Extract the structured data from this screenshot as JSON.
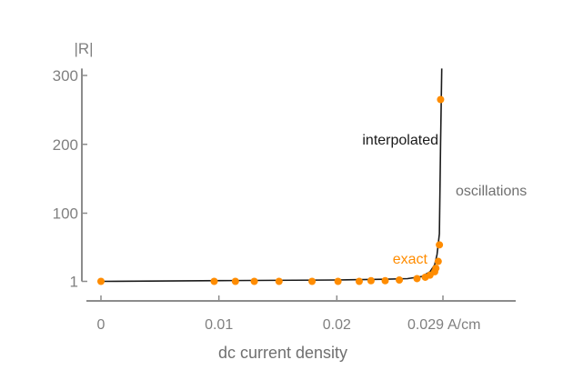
{
  "chart_data": {
    "type": "line",
    "title": "",
    "xlabel": "dc current density",
    "x_unit": "A/cm",
    "ylabel": "|R|",
    "xlim": [
      0,
      0.0352
    ],
    "ylim": [
      1,
      310
    ],
    "grid": false,
    "x_ticks": [
      {
        "value": 0,
        "label": "0"
      },
      {
        "value": 0.01,
        "label": "0.01"
      },
      {
        "value": 0.02,
        "label": "0.02"
      },
      {
        "value": 0.029,
        "label": "0.029"
      }
    ],
    "y_ticks": [
      {
        "value": 1,
        "label": "1"
      },
      {
        "value": 100,
        "label": "100"
      },
      {
        "value": 200,
        "label": "200"
      },
      {
        "value": 300,
        "label": "300"
      }
    ],
    "series": [
      {
        "name": "interpolated",
        "color": "#1a1a1a",
        "x": [
          0,
          0.01,
          0.02,
          0.024,
          0.026,
          0.0272,
          0.0279,
          0.0283,
          0.0285,
          0.0287,
          0.0288,
          0.0289
        ],
        "y": [
          1,
          2,
          3,
          4,
          5,
          8,
          15,
          25,
          40,
          70,
          200,
          310
        ]
      },
      {
        "name": "exact",
        "color": "#ff8c00",
        "x": [
          0,
          0.0096,
          0.0114,
          0.013,
          0.0151,
          0.0179,
          0.0201,
          0.0219,
          0.0229,
          0.0241,
          0.0253,
          0.0268,
          0.0275,
          0.0279,
          0.0283,
          0.0284,
          0.0286,
          0.0287,
          0.0288
        ],
        "y": [
          1,
          1,
          1,
          1,
          1,
          1,
          1,
          1,
          2,
          2,
          3,
          5,
          7,
          10,
          15,
          20,
          30,
          54,
          265
        ]
      }
    ],
    "annotations": [
      {
        "text": "interpolated",
        "color": "#1a1a1a"
      },
      {
        "text": "exact",
        "color": "#ff8c00"
      },
      {
        "text": "oscillations",
        "color": "#707070"
      }
    ],
    "axis_color": "#8c8c8c"
  }
}
